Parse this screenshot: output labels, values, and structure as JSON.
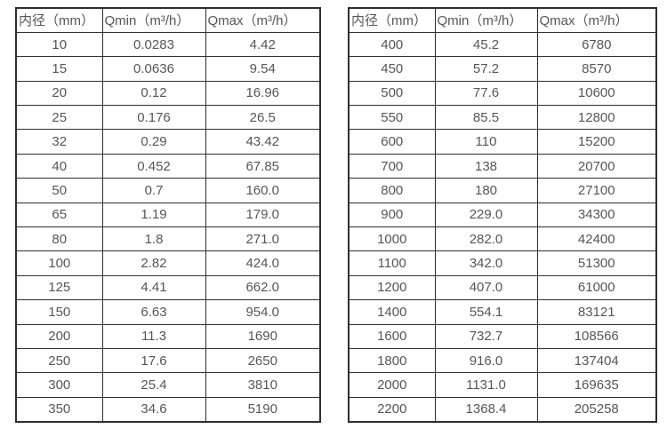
{
  "tables": [
    {
      "name": "small-diameters",
      "headers": [
        "内径（mm）",
        "Qmin（m³/h）",
        "Qmax（m³/h）"
      ],
      "rows": [
        [
          "10",
          "0.0283",
          "4.42"
        ],
        [
          "15",
          "0.0636",
          "9.54"
        ],
        [
          "20",
          "0.12",
          "16.96"
        ],
        [
          "25",
          "0.176",
          "26.5"
        ],
        [
          "32",
          "0.29",
          "43.42"
        ],
        [
          "40",
          "0.452",
          "67.85"
        ],
        [
          "50",
          "0.7",
          "160.0"
        ],
        [
          "65",
          "1.19",
          "179.0"
        ],
        [
          "80",
          "1.8",
          "271.0"
        ],
        [
          "100",
          "2.82",
          "424.0"
        ],
        [
          "125",
          "4.41",
          "662.0"
        ],
        [
          "150",
          "6.63",
          "954.0"
        ],
        [
          "200",
          "11.3",
          "1690"
        ],
        [
          "250",
          "17.6",
          "2650"
        ],
        [
          "300",
          "25.4",
          "3810"
        ],
        [
          "350",
          "34.6",
          "5190"
        ]
      ]
    },
    {
      "name": "large-diameters",
      "headers": [
        "内径（mm）",
        "Qmin（m³/h）",
        "Qmax（m³/h）"
      ],
      "rows": [
        [
          "400",
          "45.2",
          "6780"
        ],
        [
          "450",
          "57.2",
          "8570"
        ],
        [
          "500",
          "77.6",
          "10600"
        ],
        [
          "550",
          "85.5",
          "12800"
        ],
        [
          "600",
          "110",
          "15200"
        ],
        [
          "700",
          "138",
          "20700"
        ],
        [
          "800",
          "180",
          "27100"
        ],
        [
          "900",
          "229.0",
          "34300"
        ],
        [
          "1000",
          "282.0",
          "42400"
        ],
        [
          "1100",
          "342.0",
          "51300"
        ],
        [
          "1200",
          "407.0",
          "61000"
        ],
        [
          "1400",
          "554.1",
          "83121"
        ],
        [
          "1600",
          "732.7",
          "108566"
        ],
        [
          "1800",
          "916.0",
          "137404"
        ],
        [
          "2000",
          "1131.0",
          "169635"
        ],
        [
          "2200",
          "1368.4",
          "205258"
        ]
      ]
    }
  ],
  "colors": {
    "border": "#2e2e2e",
    "text": "#565656",
    "background": "#ffffff"
  }
}
